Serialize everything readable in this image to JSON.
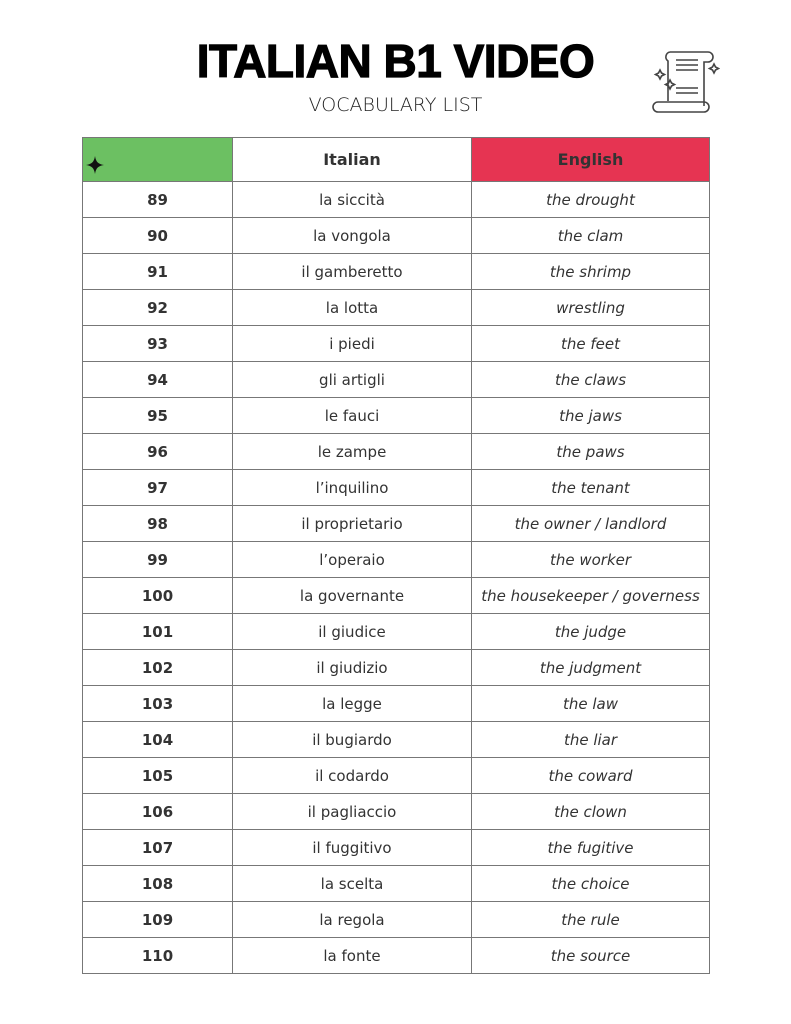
{
  "header": {
    "title": "ITALIAN B1 VIDEO",
    "subtitle": "VOCABULARY LIST",
    "icon": "scroll-icon"
  },
  "table": {
    "columns": [
      {
        "label": "",
        "icon": "sparkle-icon",
        "color": "#6cc062"
      },
      {
        "label": "Italian",
        "color": "#ffffff"
      },
      {
        "label": "English",
        "color": "#e63452"
      }
    ],
    "rows": [
      [
        "89",
        "la siccità",
        "the drought"
      ],
      [
        "90",
        "la vongola",
        "the clam"
      ],
      [
        "91",
        "il gamberetto",
        "the shrimp"
      ],
      [
        "92",
        "la lotta",
        "wrestling"
      ],
      [
        "93",
        "i piedi",
        "the feet"
      ],
      [
        "94",
        "gli artigli",
        "the claws"
      ],
      [
        "95",
        "le fauci",
        "the jaws"
      ],
      [
        "96",
        "le zampe",
        "the paws"
      ],
      [
        "97",
        "l’inquilino",
        "the tenant"
      ],
      [
        "98",
        "il proprietario",
        "the owner / landlord"
      ],
      [
        "99",
        "l’operaio",
        "the worker"
      ],
      [
        "100",
        "la governante",
        "the housekeeper / governess"
      ],
      [
        "101",
        "il giudice",
        "the judge"
      ],
      [
        "102",
        "il giudizio",
        "the judgment"
      ],
      [
        "103",
        "la legge",
        "the law"
      ],
      [
        "104",
        "il bugiardo",
        "the liar"
      ],
      [
        "105",
        "il codardo",
        "the coward"
      ],
      [
        "106",
        "il pagliaccio",
        "the clown"
      ],
      [
        "107",
        "il fuggitivo",
        "the fugitive"
      ],
      [
        "108",
        "la scelta",
        "the choice"
      ],
      [
        "109",
        "la regola",
        "the rule"
      ],
      [
        "110",
        "la fonte",
        "the source"
      ]
    ]
  }
}
